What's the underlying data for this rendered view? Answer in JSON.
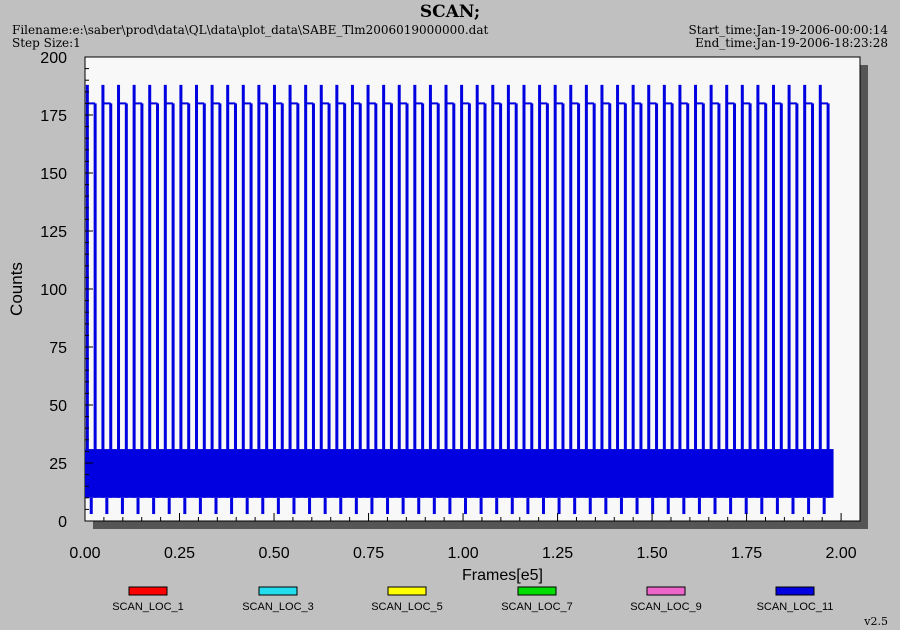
{
  "header": {
    "title": "SCAN;",
    "filename": "Filename:e:\\saber\\prod\\data\\QL\\data\\plot_data\\SABE_Tlm2006019000000.dat",
    "step_size": "Step Size:1",
    "start_time": "Start_time:Jan-19-2006-00:00:14",
    "end_time": "End_time:Jan-19-2006-18:23:28"
  },
  "version": "v2.5",
  "chart_data": {
    "type": "line",
    "title": "SCAN;",
    "xlabel": "Frames[e5]",
    "ylabel": "Counts",
    "xlim": [
      0,
      2.05
    ],
    "ylim": [
      0,
      200
    ],
    "x_ticks": [
      "0.00",
      "0.25",
      "0.50",
      "0.75",
      "1.00",
      "1.25",
      "1.50",
      "1.75",
      "2.00"
    ],
    "y_ticks": [
      "0",
      "25",
      "50",
      "75",
      "100",
      "125",
      "150",
      "175",
      "200"
    ],
    "grid": false,
    "legend_position": "bottom",
    "series": [
      {
        "name": "SCAN_LOC_1",
        "color": "#ff0000",
        "values": []
      },
      {
        "name": "SCAN_LOC_3",
        "color": "#22ddee",
        "values": []
      },
      {
        "name": "SCAN_LOC_5",
        "color": "#ffff00",
        "values": []
      },
      {
        "name": "SCAN_LOC_7",
        "color": "#00dd00",
        "values": []
      },
      {
        "name": "SCAN_LOC_9",
        "color": "#ee66cc",
        "values": []
      },
      {
        "name": "SCAN_LOC_11",
        "color": "#0000e0",
        "x_range": [
          0.0,
          1.98
        ],
        "baseline_band": [
          10,
          31
        ],
        "spike_tops": [
          180,
          188
        ],
        "dip_min": 3,
        "values": []
      }
    ]
  }
}
